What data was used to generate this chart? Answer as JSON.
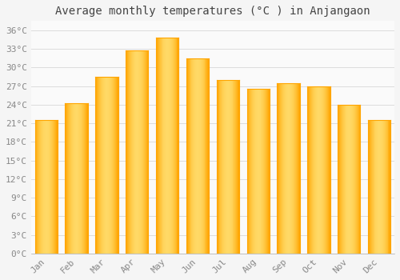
{
  "title": "Average monthly temperatures (°C ) in Anjangaon",
  "months": [
    "Jan",
    "Feb",
    "Mar",
    "Apr",
    "May",
    "Jun",
    "Jul",
    "Aug",
    "Sep",
    "Oct",
    "Nov",
    "Dec"
  ],
  "values": [
    21.5,
    24.2,
    28.5,
    32.8,
    34.8,
    31.5,
    28.0,
    26.5,
    27.5,
    27.0,
    24.0,
    21.5
  ],
  "bar_color_center": "#FFD966",
  "bar_color_edge": "#FFA500",
  "background_color": "#F5F5F5",
  "plot_bg_color": "#FAFAFA",
  "grid_color": "#DDDDDD",
  "ytick_labels": [
    "0°C",
    "3°C",
    "6°C",
    "9°C",
    "12°C",
    "15°C",
    "18°C",
    "21°C",
    "24°C",
    "27°C",
    "30°C",
    "33°C",
    "36°C"
  ],
  "ytick_values": [
    0,
    3,
    6,
    9,
    12,
    15,
    18,
    21,
    24,
    27,
    30,
    33,
    36
  ],
  "ylim": [
    0,
    37.5
  ],
  "title_fontsize": 10,
  "tick_fontsize": 8,
  "font_family": "monospace",
  "tick_color": "#888888",
  "title_color": "#444444"
}
